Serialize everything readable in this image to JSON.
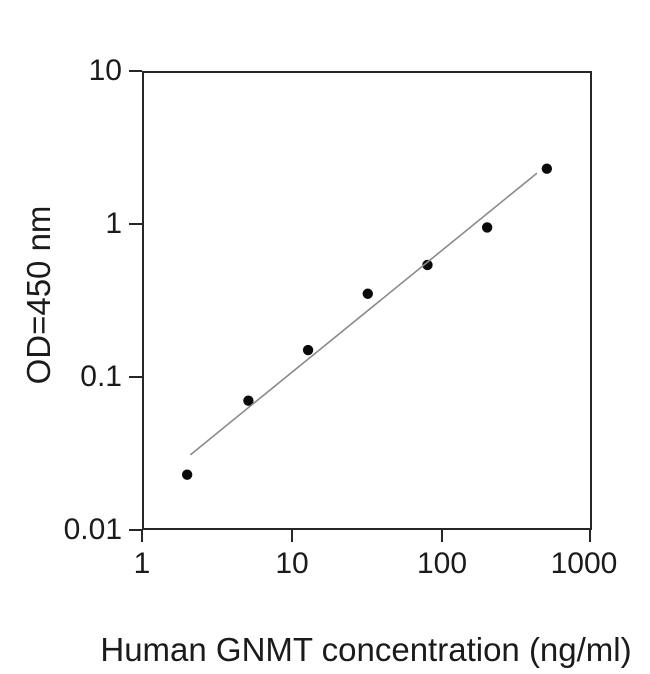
{
  "figure": {
    "background_color": "#ffffff",
    "axis_color": "#262626",
    "text_color": "#1b1b1b",
    "fit_line_color": "#8a8a8a",
    "marker_color": "#0a0a0a"
  },
  "chart_data": {
    "type": "scatter",
    "title": "",
    "xlabel": "Human GNMT concentration (ng/ml)",
    "ylabel": "OD=450 nm",
    "x_scale": "log",
    "y_scale": "log",
    "xlim": [
      1,
      1000
    ],
    "ylim": [
      0.01,
      10
    ],
    "x_tick_values": [
      1,
      10,
      100,
      1000
    ],
    "x_tick_labels": [
      "1",
      "10",
      "100",
      "1000"
    ],
    "y_tick_values": [
      10,
      1,
      0.1,
      0.01
    ],
    "y_tick_labels": [
      "10",
      "1",
      "0.1",
      "0.01"
    ],
    "grid": false,
    "legend": null,
    "series": [
      {
        "name": "standard-points",
        "type": "scatter",
        "marker": "filled-circle",
        "marker_radius_px": 5.2,
        "points": [
          {
            "x": 2,
            "y": 0.023
          },
          {
            "x": 5.12,
            "y": 0.07
          },
          {
            "x": 12.8,
            "y": 0.15
          },
          {
            "x": 32,
            "y": 0.35
          },
          {
            "x": 80,
            "y": 0.54
          },
          {
            "x": 200,
            "y": 0.95
          },
          {
            "x": 500,
            "y": 2.3
          }
        ]
      },
      {
        "name": "linear-fit",
        "type": "line",
        "points": [
          {
            "x": 2.1,
            "y": 0.031
          },
          {
            "x": 430,
            "y": 2.15
          }
        ]
      }
    ]
  }
}
